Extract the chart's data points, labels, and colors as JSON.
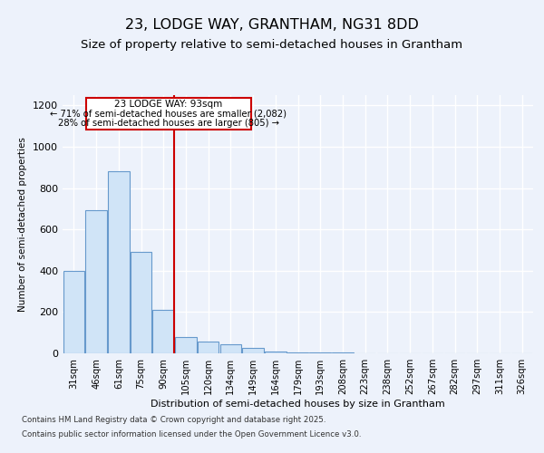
{
  "title1": "23, LODGE WAY, GRANTHAM, NG31 8DD",
  "title2": "Size of property relative to semi-detached houses in Grantham",
  "xlabel": "Distribution of semi-detached houses by size in Grantham",
  "ylabel": "Number of semi-detached properties",
  "categories": [
    "31sqm",
    "46sqm",
    "61sqm",
    "75sqm",
    "90sqm",
    "105sqm",
    "120sqm",
    "134sqm",
    "149sqm",
    "164sqm",
    "179sqm",
    "193sqm",
    "208sqm",
    "223sqm",
    "238sqm",
    "252sqm",
    "267sqm",
    "282sqm",
    "297sqm",
    "311sqm",
    "326sqm"
  ],
  "values": [
    400,
    695,
    880,
    490,
    210,
    80,
    55,
    45,
    25,
    10,
    5,
    4,
    3,
    2,
    2,
    1,
    1,
    1,
    1,
    1,
    1
  ],
  "bar_color": "#d0e4f7",
  "bar_edge_color": "#6699cc",
  "annotation_line_label": "23 LODGE WAY: 93sqm",
  "annotation_text1": "← 71% of semi-detached houses are smaller (2,082)",
  "annotation_text2": "28% of semi-detached houses are larger (805) →",
  "annotation_box_edge": "#cc0000",
  "vline_color": "#cc0000",
  "vline_x": 4.47,
  "ylim": [
    0,
    1250
  ],
  "yticks": [
    0,
    200,
    400,
    600,
    800,
    1000,
    1200
  ],
  "footer1": "Contains HM Land Registry data © Crown copyright and database right 2025.",
  "footer2": "Contains public sector information licensed under the Open Government Licence v3.0.",
  "bg_color": "#edf2fb",
  "title1_fontsize": 11.5,
  "title2_fontsize": 9.5
}
